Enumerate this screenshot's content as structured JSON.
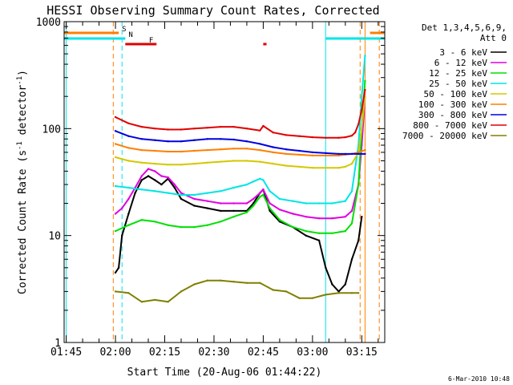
{
  "chart_data": {
    "type": "line",
    "title": "HESSI Observing Summary Count Rates, Corrected",
    "xlabel": "Start Time (20-Aug-06 01:44:22)",
    "ylabel": "Corrected Count Rate (s⁻¹ detector⁻¹)",
    "ylabel_main": "Corrected Count Rate (s",
    "ylabel_sup1": "-1",
    "ylabel_mid": " detector",
    "ylabel_sup2": "-1",
    "ylabel_end": ")",
    "y_scale": "log",
    "ylim": [
      1,
      1000
    ],
    "xlim": [
      "01:44:22",
      "03:22:00"
    ],
    "x_ticks": [
      "01:45",
      "02:00",
      "02:15",
      "02:30",
      "02:45",
      "03:00",
      "03:15"
    ],
    "y_ticks": [
      "1",
      "10",
      "100",
      "1000"
    ],
    "legend_placement": "right",
    "legend_header": [
      "Det 1,3,4,5,6,9,",
      "Att 0"
    ],
    "footer_date": "6-Mar-2010 10:48",
    "flags": [
      {
        "label": "S",
        "color": "#ff7f00",
        "segments": [
          [
            "01:44:22",
            "02:01:00"
          ],
          [
            "03:17:30",
            "03:22:00"
          ]
        ]
      },
      {
        "label": "N",
        "color": "#00e5e5",
        "segments": [
          [
            "01:44:22",
            "02:03:00"
          ],
          [
            "03:04:00",
            "03:22:00"
          ]
        ]
      },
      {
        "label": "F",
        "color": "#e00000",
        "segments": [
          [
            "02:03:00",
            "02:12:30"
          ],
          [
            "02:45:00",
            "02:46:00"
          ]
        ]
      }
    ],
    "vlines": [
      {
        "time": "01:45:00",
        "color": "#00e5e5",
        "style": "solid"
      },
      {
        "time": "01:59:20",
        "color": "#ff7f00",
        "style": "dashed"
      },
      {
        "time": "02:02:00",
        "color": "#00e5e5",
        "style": "dashed"
      },
      {
        "time": "03:04:00",
        "color": "#00e5e5",
        "style": "solid"
      },
      {
        "time": "03:14:30",
        "color": "#ff7f00",
        "style": "dashed"
      },
      {
        "time": "03:16:00",
        "color": "#ff7f00",
        "style": "solid"
      },
      {
        "time": "03:20:20",
        "color": "#ff7f00",
        "style": "dashed"
      }
    ],
    "series": [
      {
        "name": "3 - 6 keV",
        "color": "#000000",
        "x": [
          "02:00",
          "02:01",
          "02:02",
          "02:04",
          "02:06",
          "02:08",
          "02:10",
          "02:12",
          "02:14",
          "02:16",
          "02:18",
          "02:20",
          "02:24",
          "02:28",
          "02:32",
          "02:36",
          "02:40",
          "02:42",
          "02:44",
          "02:45",
          "02:47",
          "02:50",
          "02:54",
          "02:58",
          "03:02",
          "03:04",
          "03:06",
          "03:08",
          "03:10",
          "03:12",
          "03:14",
          "03:15"
        ],
        "y": [
          4.5,
          5,
          10,
          16,
          25,
          33,
          36,
          33,
          30,
          34,
          28,
          22,
          19,
          18,
          17,
          17,
          17,
          20,
          25,
          27,
          17,
          13.5,
          12,
          10,
          9,
          5,
          3.5,
          3,
          3.5,
          6,
          9,
          15
        ]
      },
      {
        "name": "6 - 12 keV",
        "color": "#e000e0",
        "x": [
          "02:00",
          "02:02",
          "02:04",
          "02:06",
          "02:08",
          "02:10",
          "02:12",
          "02:14",
          "02:16",
          "02:18",
          "02:20",
          "02:24",
          "02:28",
          "02:32",
          "02:36",
          "02:40",
          "02:42",
          "02:44",
          "02:45",
          "02:47",
          "02:50",
          "02:54",
          "02:58",
          "03:02",
          "03:06",
          "03:10",
          "03:12",
          "03:14",
          "03:15",
          "03:16"
        ],
        "y": [
          16,
          18,
          22,
          28,
          36,
          42,
          40,
          36,
          35,
          30,
          25,
          22,
          21,
          20,
          20,
          20,
          22,
          25,
          27,
          20,
          17.5,
          16,
          15,
          14.5,
          14.5,
          15,
          17,
          30,
          70,
          200
        ]
      },
      {
        "name": "12 - 25 keV",
        "color": "#00e000",
        "x": [
          "02:00",
          "02:04",
          "02:08",
          "02:12",
          "02:16",
          "02:20",
          "02:24",
          "02:28",
          "02:32",
          "02:36",
          "02:40",
          "02:42",
          "02:44",
          "02:45",
          "02:47",
          "02:50",
          "02:54",
          "02:58",
          "03:02",
          "03:06",
          "03:10",
          "03:12",
          "03:14",
          "03:15",
          "03:16"
        ],
        "y": [
          11,
          12.5,
          14,
          13.5,
          12.5,
          12,
          12,
          12.5,
          13.5,
          15,
          16.5,
          19,
          23,
          24,
          18,
          14,
          12,
          11,
          10.5,
          10.5,
          11,
          13,
          30,
          100,
          280
        ]
      },
      {
        "name": "25 - 50 keV",
        "color": "#00e5e5",
        "x": [
          "02:00",
          "02:04",
          "02:08",
          "02:12",
          "02:16",
          "02:20",
          "02:24",
          "02:28",
          "02:32",
          "02:36",
          "02:40",
          "02:42",
          "02:44",
          "02:45",
          "02:47",
          "02:50",
          "02:54",
          "02:58",
          "03:02",
          "03:06",
          "03:10",
          "03:12",
          "03:14",
          "03:15",
          "03:16"
        ],
        "y": [
          29,
          28,
          27,
          26,
          25,
          24,
          24,
          25,
          26,
          28,
          30,
          32,
          34,
          33,
          26,
          22,
          21,
          20,
          20,
          20,
          21,
          26,
          70,
          200,
          480
        ]
      },
      {
        "name": "50 - 100 keV",
        "color": "#d4c800",
        "x": [
          "02:00",
          "02:04",
          "02:08",
          "02:12",
          "02:16",
          "02:20",
          "02:24",
          "02:28",
          "02:32",
          "02:36",
          "02:40",
          "02:44",
          "02:48",
          "02:52",
          "02:56",
          "03:00",
          "03:04",
          "03:08",
          "03:10",
          "03:12",
          "03:14",
          "03:15",
          "03:16"
        ],
        "y": [
          54,
          50,
          48,
          47,
          46,
          46,
          47,
          48,
          49,
          50,
          50,
          49,
          47,
          45,
          44,
          43,
          43,
          43,
          44,
          47,
          60,
          100,
          200
        ]
      },
      {
        "name": "100 - 300 keV",
        "color": "#ff7f00",
        "x": [
          "02:00",
          "02:04",
          "02:08",
          "02:12",
          "02:16",
          "02:20",
          "02:24",
          "02:28",
          "02:32",
          "02:36",
          "02:40",
          "02:44",
          "02:48",
          "02:52",
          "02:56",
          "03:00",
          "03:04",
          "03:08",
          "03:10",
          "03:12",
          "03:14",
          "03:16"
        ],
        "y": [
          72,
          66,
          63,
          62,
          61,
          61,
          62,
          63,
          64,
          65,
          65,
          63,
          60,
          58,
          57,
          56,
          56,
          56,
          57,
          58,
          60,
          63
        ]
      },
      {
        "name": "300 - 800 keV",
        "color": "#0000e0",
        "x": [
          "02:00",
          "02:04",
          "02:08",
          "02:12",
          "02:16",
          "02:20",
          "02:24",
          "02:28",
          "02:32",
          "02:36",
          "02:40",
          "02:44",
          "02:48",
          "02:52",
          "02:56",
          "03:00",
          "03:04",
          "03:08",
          "03:10",
          "03:12",
          "03:14",
          "03:16"
        ],
        "y": [
          95,
          85,
          80,
          78,
          76,
          76,
          78,
          80,
          80,
          79,
          76,
          72,
          67,
          64,
          62,
          60,
          59,
          58,
          58,
          58,
          58,
          58
        ]
      },
      {
        "name": "800 - 7000 keV",
        "color": "#e00000",
        "x": [
          "02:00",
          "02:04",
          "02:08",
          "02:12",
          "02:16",
          "02:20",
          "02:24",
          "02:28",
          "02:32",
          "02:36",
          "02:40",
          "02:44",
          "02:45",
          "02:48",
          "02:52",
          "02:56",
          "03:00",
          "03:04",
          "03:08",
          "03:10",
          "03:12",
          "03:13",
          "03:14",
          "03:15",
          "03:16"
        ],
        "y": [
          128,
          112,
          104,
          100,
          98,
          98,
          100,
          102,
          104,
          104,
          100,
          96,
          106,
          92,
          87,
          85,
          83,
          82,
          82,
          83,
          86,
          92,
          110,
          150,
          230
        ]
      },
      {
        "name": "7000 - 20000 keV",
        "color": "#808000",
        "x": [
          "02:00",
          "02:04",
          "02:08",
          "02:12",
          "02:16",
          "02:20",
          "02:24",
          "02:28",
          "02:32",
          "02:36",
          "02:40",
          "02:44",
          "02:48",
          "02:52",
          "02:56",
          "03:00",
          "03:04",
          "03:08",
          "03:12",
          "03:14"
        ],
        "y": [
          3,
          2.9,
          2.4,
          2.5,
          2.4,
          3,
          3.5,
          3.8,
          3.8,
          3.7,
          3.6,
          3.6,
          3.1,
          3.0,
          2.6,
          2.6,
          2.8,
          2.9,
          2.9,
          2.9
        ]
      }
    ]
  }
}
